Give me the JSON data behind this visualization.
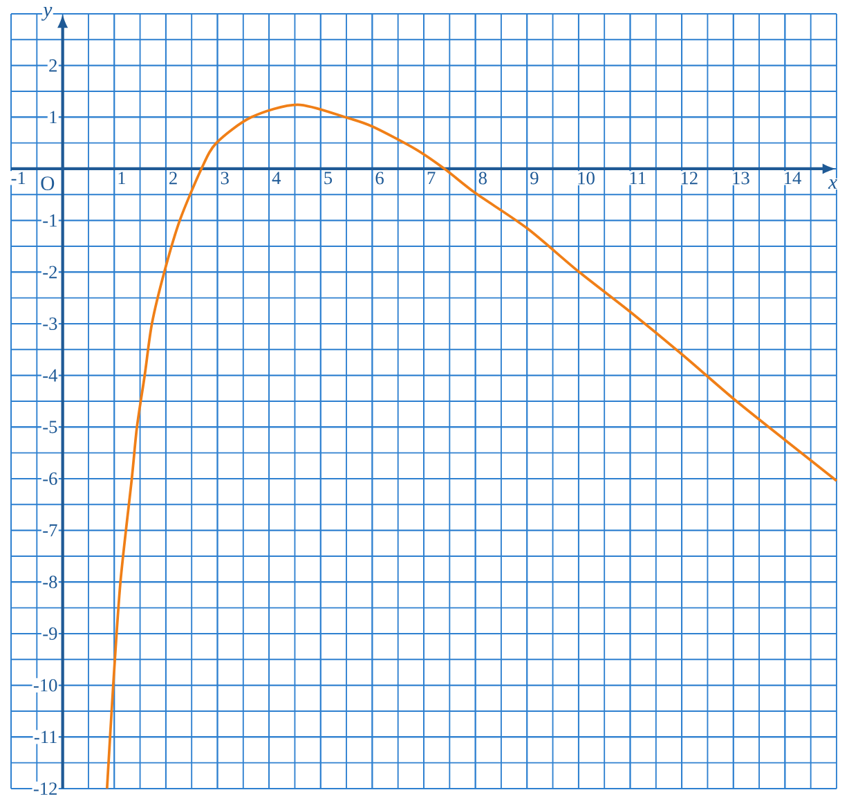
{
  "chart_data": {
    "type": "line",
    "xlabel": "x",
    "ylabel": "y",
    "color": "#f07f17",
    "line_style": "solid",
    "x": [
      0.86,
      0.98,
      1.12,
      1.34,
      1.44,
      1.59,
      1.73,
      1.97,
      2.27,
      2.69,
      2.98,
      3.66,
      4.55,
      5.47,
      6,
      6.84,
      7.4,
      8,
      9,
      10,
      11,
      12,
      13,
      14,
      15
    ],
    "values": [
      -12,
      -10,
      -8,
      -6,
      -5,
      -4,
      -3,
      -2,
      -1,
      0,
      0.5,
      1,
      1.24,
      1,
      0.82,
      0.38,
      0,
      -0.47,
      -1.15,
      -1.99,
      -2.77,
      -3.59,
      -4.45,
      -5.25,
      -6.04
    ],
    "xlim": [
      -1,
      15
    ],
    "ylim": [
      -12,
      3
    ],
    "xticks": [
      -1,
      1,
      2,
      3,
      4,
      5,
      6,
      7,
      8,
      9,
      10,
      11,
      12,
      13,
      14
    ],
    "yticks": [
      -12,
      -11,
      -10,
      -9,
      -8,
      -7,
      -6,
      -5,
      -4,
      -3,
      -2,
      -1,
      1,
      2
    ],
    "grid": true,
    "annotations": [
      "O"
    ]
  }
}
